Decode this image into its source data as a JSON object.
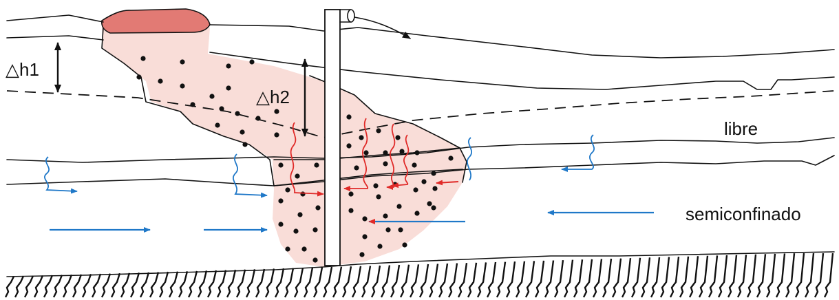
{
  "labels": {
    "dh1": "△h1",
    "dh2": "△h2",
    "free_aquifer": "libre",
    "semiconfined_aquifer": "semiconfinado"
  },
  "colors": {
    "plume_fill": "#f9ddd8",
    "source_fill": "#e27a74",
    "flow_blue": "#1f78c8",
    "flow_red": "#e02a28",
    "line": "#111111"
  },
  "icons": [
    "double-arrow-icon",
    "discharge-arrow-icon",
    "flow-arrow-icon",
    "leakage-arrow-icon"
  ]
}
